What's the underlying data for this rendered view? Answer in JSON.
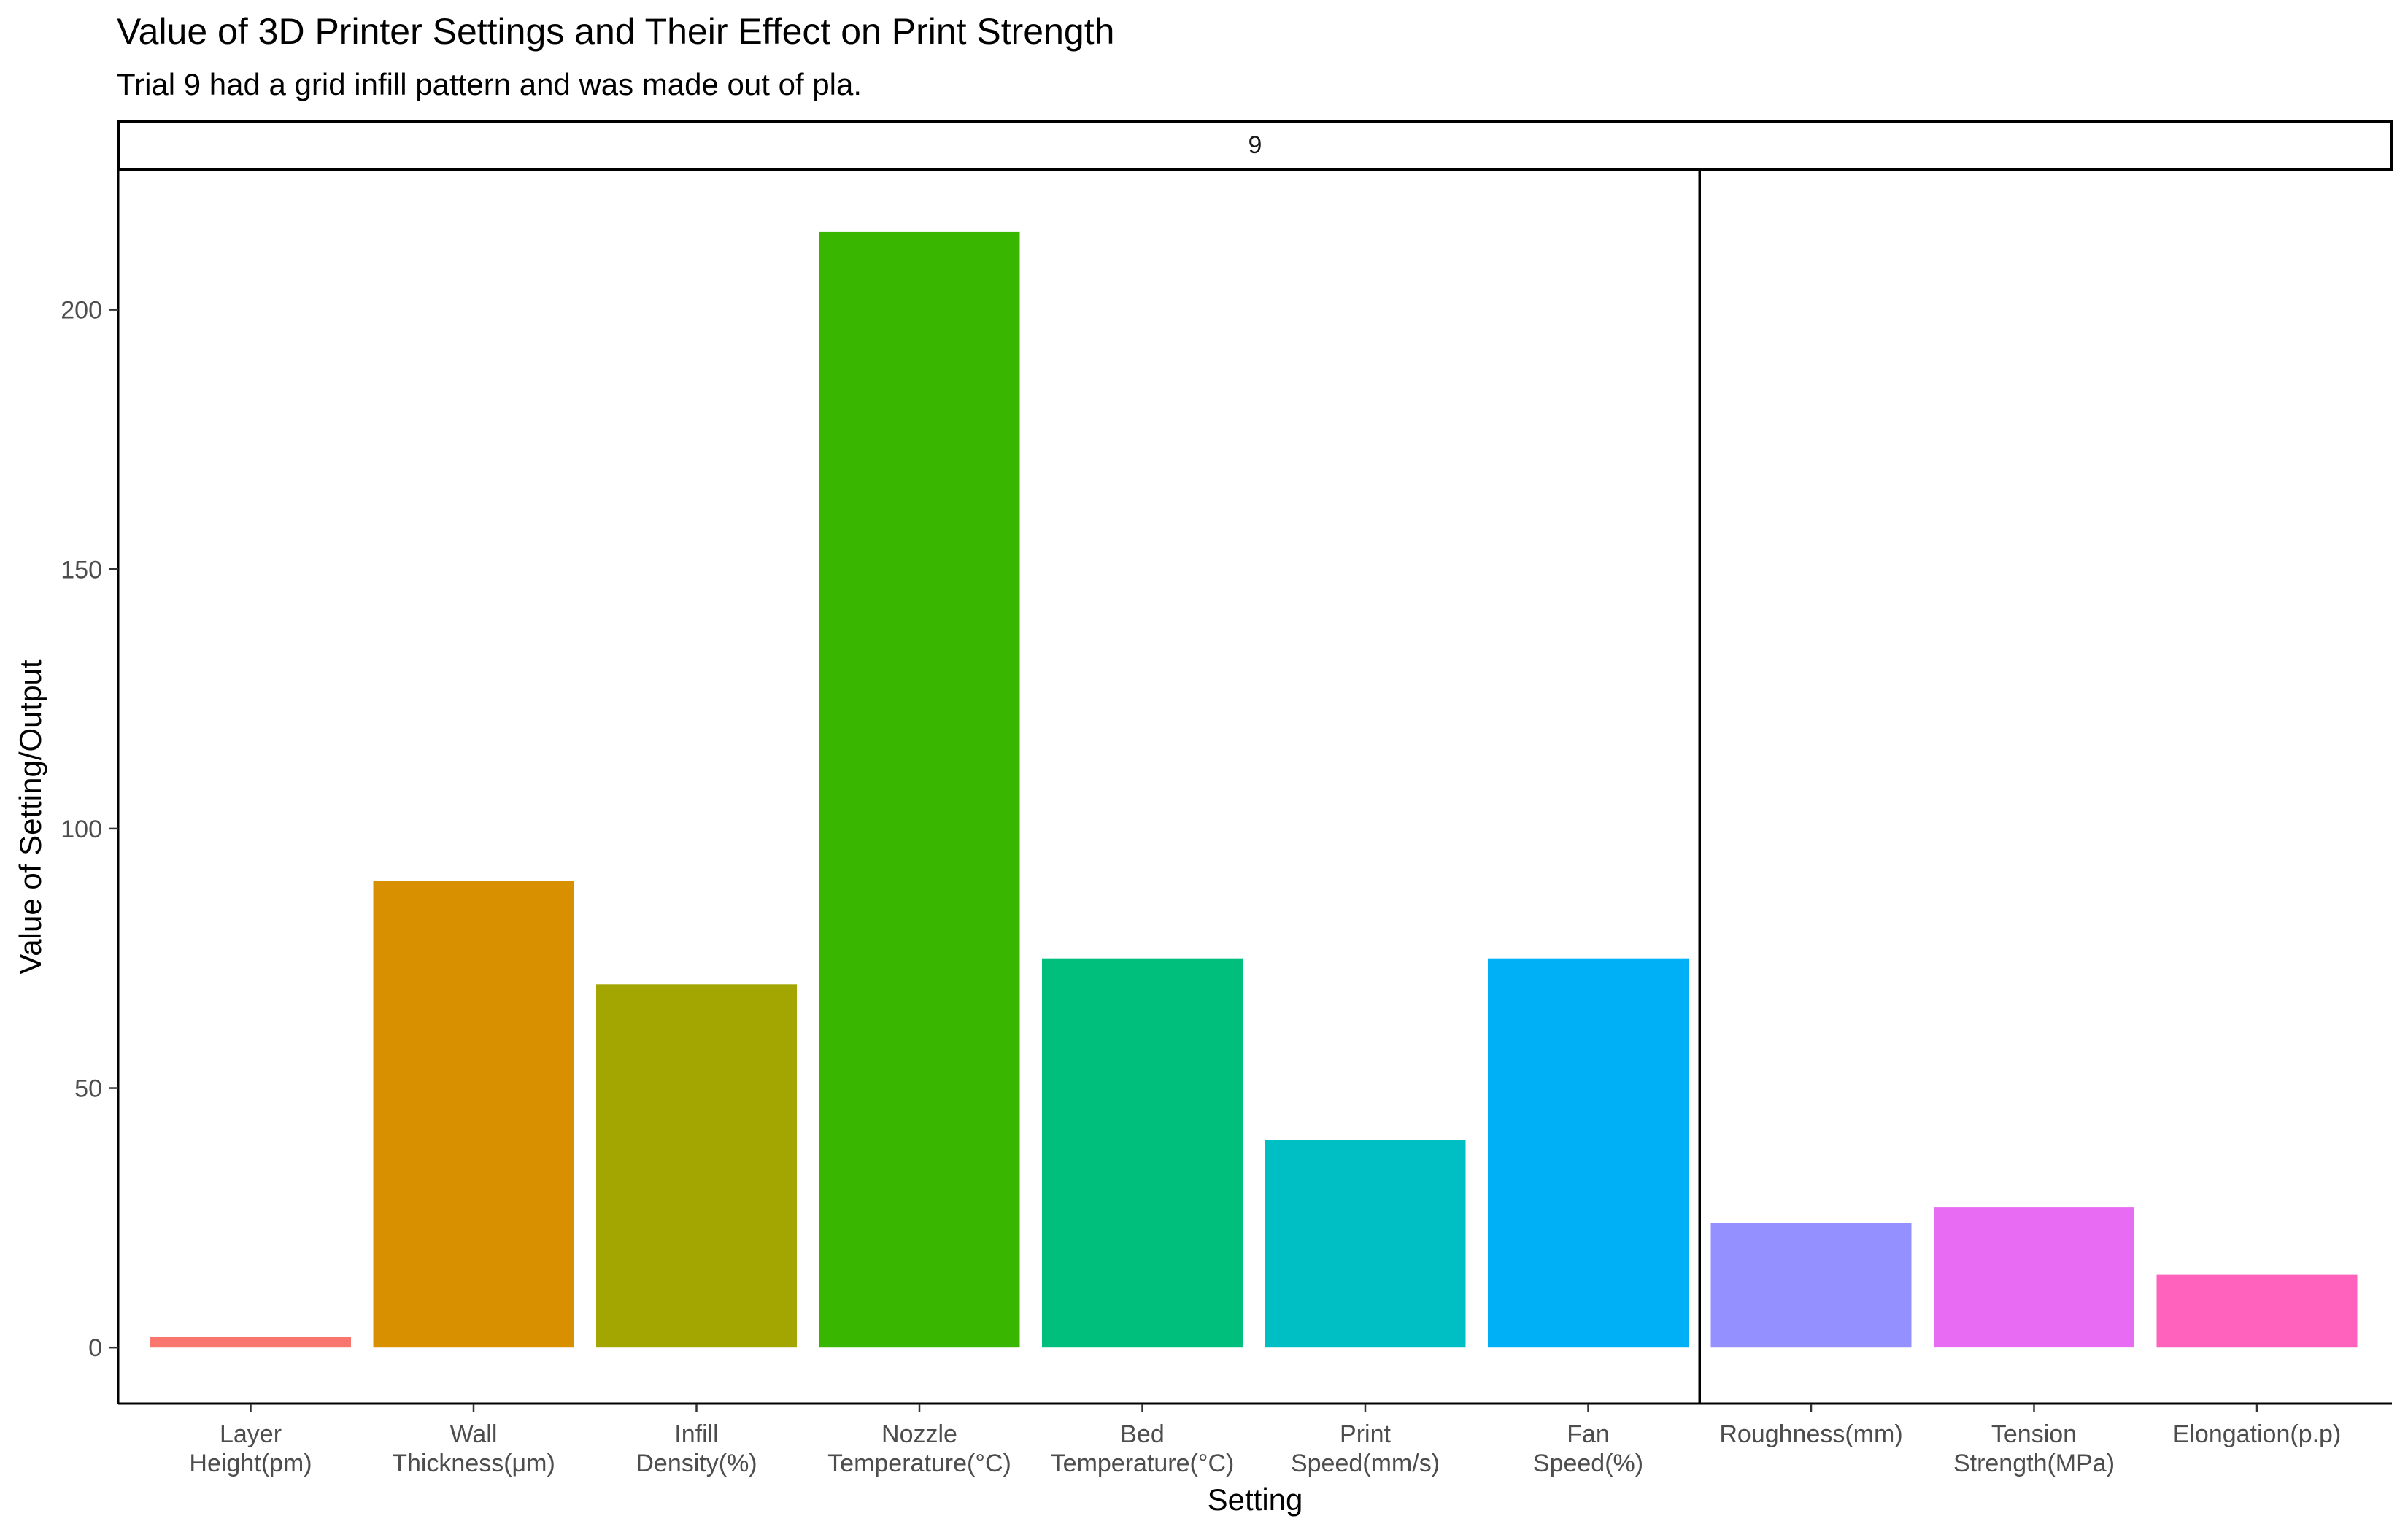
{
  "chart_data": {
    "type": "bar",
    "title": "Value of 3D Printer Settings and Their Effect on Print Strength",
    "subtitle": "Trial 9 had a grid infill pattern and was made out of pla.",
    "facet_label": "9",
    "xlabel": "Setting",
    "ylabel": "Value of Setting/Output",
    "ylim": [
      -10.8,
      226.8
    ],
    "yticks": [
      0,
      50,
      100,
      150,
      200
    ],
    "grid": false,
    "legend": "none",
    "categories": [
      [
        "Layer",
        "Height(pm)"
      ],
      [
        "Wall",
        "Thickness(μm)"
      ],
      [
        "Infill",
        "Density(%)"
      ],
      [
        "Nozzle",
        "Temperature(°C)"
      ],
      [
        "Bed",
        "Temperature(°C)"
      ],
      [
        "Print",
        "Speed(mm/s)"
      ],
      [
        "Fan",
        "Speed(%)"
      ],
      [
        "Roughness(mm)"
      ],
      [
        "Tension",
        "Strength(MPa)"
      ],
      [
        "Elongation(p.p)"
      ]
    ],
    "values": [
      2,
      90,
      70,
      215,
      75,
      40,
      75,
      24,
      27,
      14
    ],
    "colors": [
      "#F8766D",
      "#D89000",
      "#A3A500",
      "#39B600",
      "#00BF7D",
      "#00BFC4",
      "#00B0F6",
      "#9590FF",
      "#E76BF3",
      "#FF62BC"
    ],
    "separator_after_index": 6
  }
}
